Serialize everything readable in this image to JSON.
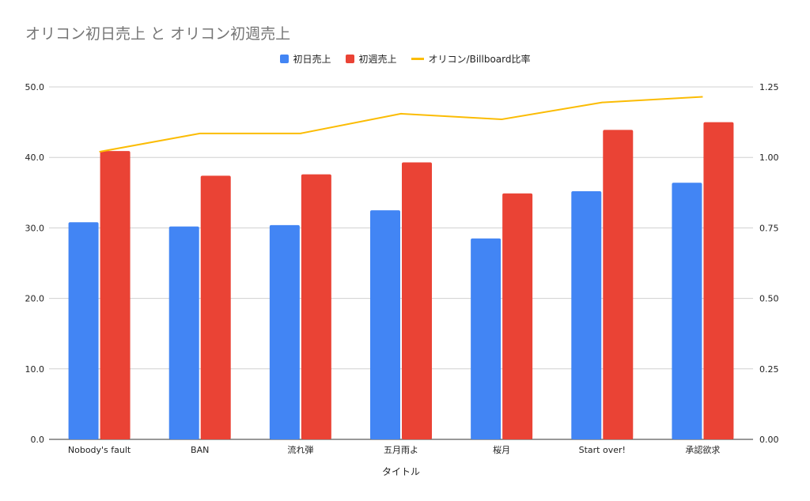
{
  "chart_data": {
    "type": "bar",
    "title": "オリコン初日売上 と オリコン初週売上",
    "xlabel": "タイトル",
    "categories": [
      "Nobody's fault",
      "BAN",
      "流れ弾",
      "五月雨よ",
      "桜月",
      "Start over!",
      "承認欲求"
    ],
    "series": [
      {
        "name": "初日売上",
        "type": "bar",
        "axis": "left",
        "color": "#4285f4",
        "values": [
          30.8,
          30.2,
          30.4,
          32.5,
          28.5,
          35.2,
          36.4
        ]
      },
      {
        "name": "初週売上",
        "type": "bar",
        "axis": "left",
        "color": "#ea4335",
        "values": [
          40.9,
          37.4,
          37.6,
          39.3,
          34.9,
          43.9,
          45.0
        ]
      },
      {
        "name": "オリコン/Billboard比率",
        "type": "line",
        "axis": "right",
        "color": "#fbbc04",
        "values": [
          1.02,
          1.085,
          1.085,
          1.155,
          1.135,
          1.195,
          1.215
        ]
      }
    ],
    "y_left": {
      "range": [
        0,
        50
      ],
      "ticks": [
        "0.0",
        "10.0",
        "20.0",
        "30.0",
        "40.0",
        "50.0"
      ]
    },
    "y_right": {
      "range": [
        0,
        1.25
      ],
      "ticks": [
        "0.00",
        "0.25",
        "0.50",
        "0.75",
        "1.00",
        "1.25"
      ]
    },
    "grid": true,
    "legend_position": "top"
  }
}
